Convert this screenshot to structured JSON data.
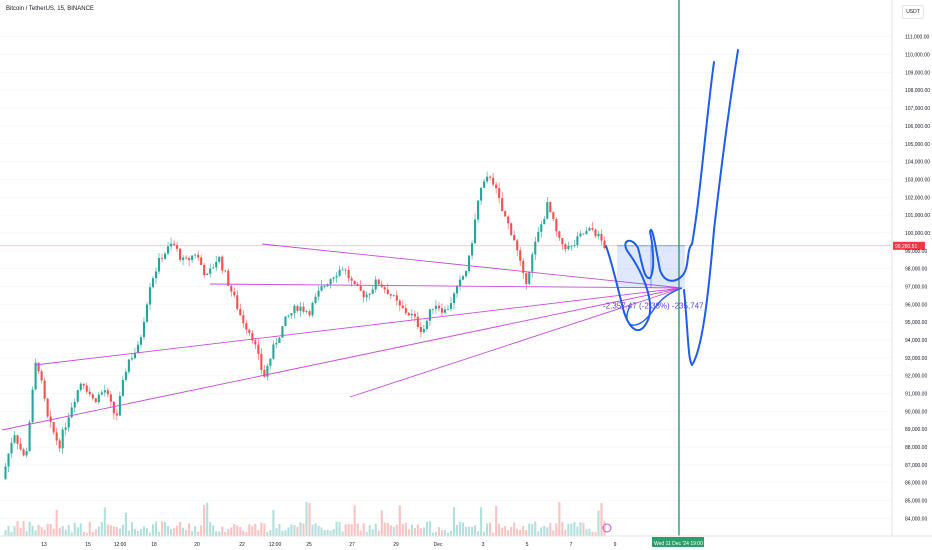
{
  "header": {
    "title": "Bitcoin / TetherUS, 15, BINANCE"
  },
  "currency_badge": "USDT",
  "colors": {
    "up": "#26a69a",
    "down": "#ef5350",
    "drawing": "#c74dd6",
    "pen": "#1e5de6",
    "vline": "#2e9e6b",
    "price_line": "#f23645"
  },
  "chart_data": {
    "type": "candlestick",
    "title": "Bitcoin / TetherUS, 15, BINANCE",
    "ylim": [
      83800,
      111600
    ],
    "y_ticks": [
      "111,000.00",
      "110,000.00",
      "109,000.00",
      "108,000.00",
      "107,000.00",
      "106,000.00",
      "105,000.00",
      "104,000.00",
      "103,000.00",
      "102,000.00",
      "101,000.00",
      "100,000.00",
      "99,000.00",
      "98,000.00",
      "97,000.00",
      "96,000.00",
      "95,000.00",
      "94,000.00",
      "93,000.00",
      "92,000.00",
      "91,000.00",
      "90,000.00",
      "89,000.00",
      "88,000.00",
      "87,000.00",
      "86,000.00",
      "85,000.00",
      "84,000.00"
    ],
    "x_ticks": [
      "13",
      "15",
      "12:00",
      "18",
      "20",
      "22",
      "12:00",
      "25",
      "27",
      "29",
      "Dec",
      "3",
      "5",
      "7",
      "9"
    ],
    "x_tick_index": [
      0,
      1,
      2,
      3,
      4,
      5,
      6,
      7,
      8,
      9,
      10,
      11,
      12,
      13,
      14
    ],
    "last_price_label": "99,280.51",
    "crosshair_date": "Wed 11 Dec '24  19:00",
    "measure_label": "-2,357.47 (-2.38%) -235,747",
    "price_path": [
      [
        0,
        86200
      ],
      [
        1,
        88900
      ],
      [
        2,
        87200
      ],
      [
        3,
        93100
      ],
      [
        4,
        89500
      ],
      [
        5,
        88100
      ],
      [
        6,
        90200
      ],
      [
        7,
        91800
      ],
      [
        8,
        90600
      ],
      [
        9,
        91200
      ],
      [
        10,
        89600
      ],
      [
        11,
        92800
      ],
      [
        12,
        93600
      ],
      [
        13,
        97200
      ],
      [
        14,
        98700
      ],
      [
        15,
        99400
      ],
      [
        16,
        98300
      ],
      [
        17,
        98900
      ],
      [
        18,
        97500
      ],
      [
        19,
        98700
      ],
      [
        20,
        97000
      ],
      [
        21,
        95300
      ],
      [
        22,
        94200
      ],
      [
        23,
        91900
      ],
      [
        24,
        93800
      ],
      [
        25,
        95200
      ],
      [
        26,
        95900
      ],
      [
        27,
        95600
      ],
      [
        28,
        96800
      ],
      [
        29,
        97600
      ],
      [
        30,
        98100
      ],
      [
        31,
        96900
      ],
      [
        32,
        96500
      ],
      [
        33,
        97300
      ],
      [
        34,
        96700
      ],
      [
        35,
        95800
      ],
      [
        36,
        95400
      ],
      [
        37,
        94500
      ],
      [
        38,
        96100
      ],
      [
        39,
        95600
      ],
      [
        40,
        96800
      ],
      [
        41,
        98200
      ],
      [
        42,
        102300
      ],
      [
        43,
        103300
      ],
      [
        44,
        101200
      ],
      [
        45,
        99800
      ],
      [
        46,
        97100
      ],
      [
        47,
        99600
      ],
      [
        48,
        101600
      ],
      [
        49,
        99500
      ],
      [
        50,
        99100
      ],
      [
        51,
        99900
      ],
      [
        52,
        100200
      ],
      [
        53,
        99280
      ]
    ]
  }
}
